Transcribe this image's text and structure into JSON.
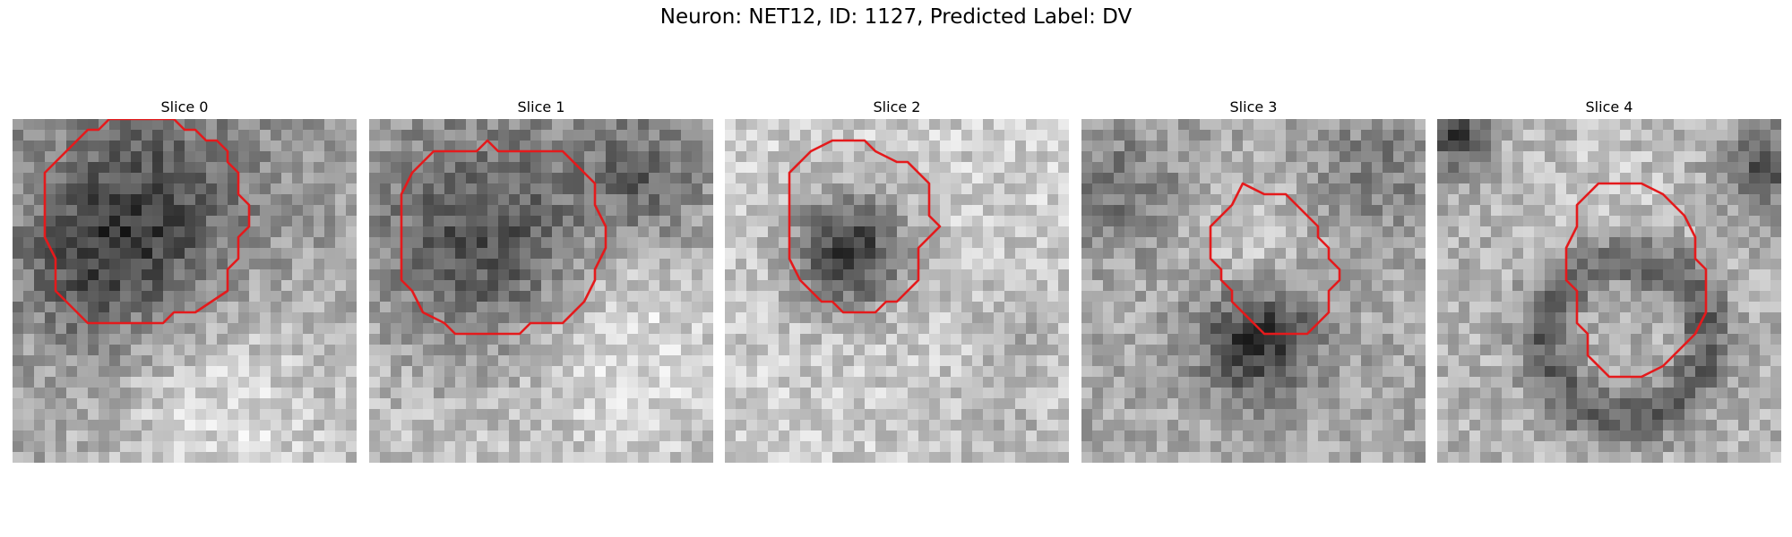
{
  "title": "Neuron: NET12, ID: 1127, Predicted Label: DV",
  "contour_color": "#e41a1c",
  "colormap": "grayscale",
  "panels": [
    {
      "title": "Slice 0"
    },
    {
      "title": "Slice 1"
    },
    {
      "title": "Slice 2"
    },
    {
      "title": "Slice 3"
    },
    {
      "title": "Slice 4"
    }
  ]
}
